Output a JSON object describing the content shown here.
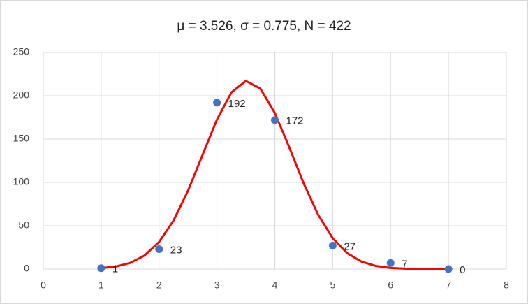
{
  "chart_data": {
    "type": "scatter",
    "title": "μ = 3.526, σ = 0.775, N = 422",
    "series": [
      {
        "color": "#4472c4",
        "mode": "markers",
        "data_labels": true,
        "x": [
          1,
          2,
          3,
          4,
          5,
          6,
          7
        ],
        "values": [
          1,
          23,
          192,
          172,
          27,
          7,
          0
        ]
      },
      {
        "color": "#ff0000",
        "mode": "line",
        "data_labels": false,
        "x": [
          1,
          1.25,
          1.5,
          1.75,
          2,
          2.25,
          2.5,
          2.75,
          3,
          3.25,
          3.5,
          3.75,
          4,
          4.25,
          4.5,
          4.75,
          5,
          5.25,
          5.5,
          5.75,
          6,
          6.25,
          6.5,
          6.75,
          7
        ],
        "values": [
          1.1,
          2.9,
          7.1,
          15.7,
          31.3,
          56.0,
          90.4,
          131.6,
          172.5,
          203.9,
          217.1,
          208.3,
          180.1,
          140.4,
          98.6,
          62.4,
          35.6,
          18.3,
          8.5,
          3.5,
          1.3,
          0.5,
          0.1,
          0.0,
          0.0
        ]
      }
    ],
    "xlim": [
      0,
      8
    ],
    "xticks": [
      0,
      1,
      2,
      3,
      4,
      5,
      6,
      7,
      8
    ],
    "ylim": [
      0,
      250
    ],
    "yticks": [
      0,
      50,
      100,
      150,
      200,
      250
    ],
    "grid": true
  }
}
